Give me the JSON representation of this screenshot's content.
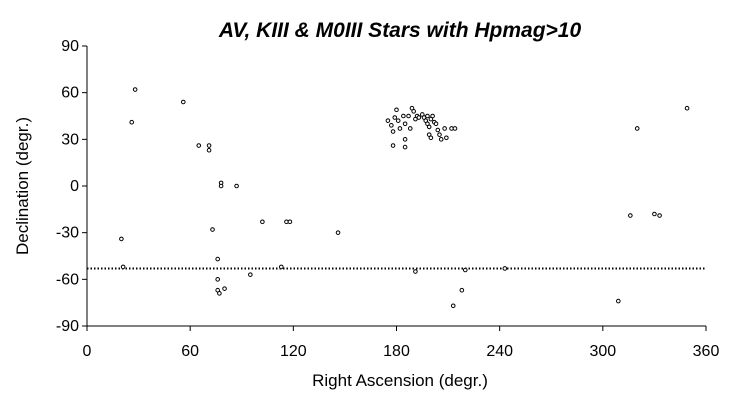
{
  "chart_data": {
    "type": "scatter",
    "title": "AV, KIII & M0III Stars with Hpmag>10",
    "xlabel": "Right Ascension (degr.)",
    "ylabel": "Declination (degr.)",
    "xlim": [
      0,
      360
    ],
    "ylim": [
      -90,
      90
    ],
    "xticks": [
      0,
      60,
      120,
      180,
      240,
      300,
      360
    ],
    "yticks": [
      90,
      60,
      30,
      0,
      -30,
      -60,
      -90
    ],
    "xtick_labels": [
      "0",
      "60",
      "120",
      "180",
      "240",
      "300",
      "360"
    ],
    "ytick_labels": [
      "90",
      "60",
      "30",
      "0",
      "-30",
      "-60",
      "-90"
    ],
    "reference_line": {
      "y": -53,
      "style": "dotted"
    },
    "grid": false,
    "marker": "hollow-circle",
    "points": [
      [
        20,
        -34
      ],
      [
        21,
        -52
      ],
      [
        26,
        41
      ],
      [
        28,
        62
      ],
      [
        56,
        54
      ],
      [
        65,
        26
      ],
      [
        71,
        26
      ],
      [
        71,
        23
      ],
      [
        73,
        -28
      ],
      [
        76,
        -47
      ],
      [
        76,
        -60
      ],
      [
        76,
        -67
      ],
      [
        77,
        -69
      ],
      [
        78,
        2
      ],
      [
        78,
        0
      ],
      [
        80,
        -66
      ],
      [
        87,
        0
      ],
      [
        95,
        -57
      ],
      [
        102,
        -23
      ],
      [
        113,
        -52
      ],
      [
        116,
        -23
      ],
      [
        118,
        -23
      ],
      [
        146,
        -30
      ],
      [
        175,
        42
      ],
      [
        177,
        39
      ],
      [
        178,
        35
      ],
      [
        178,
        26
      ],
      [
        179,
        44
      ],
      [
        180,
        49
      ],
      [
        181,
        42
      ],
      [
        182,
        37
      ],
      [
        184,
        45
      ],
      [
        185,
        40
      ],
      [
        185,
        30
      ],
      [
        185,
        25
      ],
      [
        187,
        45
      ],
      [
        188,
        37
      ],
      [
        189,
        50
      ],
      [
        190,
        48
      ],
      [
        191,
        43
      ],
      [
        192,
        45
      ],
      [
        193,
        44
      ],
      [
        195,
        46
      ],
      [
        196,
        44
      ],
      [
        197,
        42
      ],
      [
        198,
        40
      ],
      [
        198,
        45
      ],
      [
        199,
        33
      ],
      [
        199,
        38
      ],
      [
        200,
        43
      ],
      [
        200,
        31
      ],
      [
        201,
        45
      ],
      [
        202,
        41
      ],
      [
        203,
        40
      ],
      [
        204,
        36
      ],
      [
        205,
        33
      ],
      [
        206,
        30
      ],
      [
        208,
        37
      ],
      [
        209,
        31
      ],
      [
        212,
        37
      ],
      [
        214,
        37
      ],
      [
        213,
        -77
      ],
      [
        218,
        -67
      ],
      [
        220,
        -54
      ],
      [
        191,
        -55
      ],
      [
        243,
        -53
      ],
      [
        309,
        -74
      ],
      [
        316,
        -19
      ],
      [
        320,
        37
      ],
      [
        330,
        -18
      ],
      [
        333,
        -19
      ],
      [
        349,
        50
      ]
    ]
  }
}
